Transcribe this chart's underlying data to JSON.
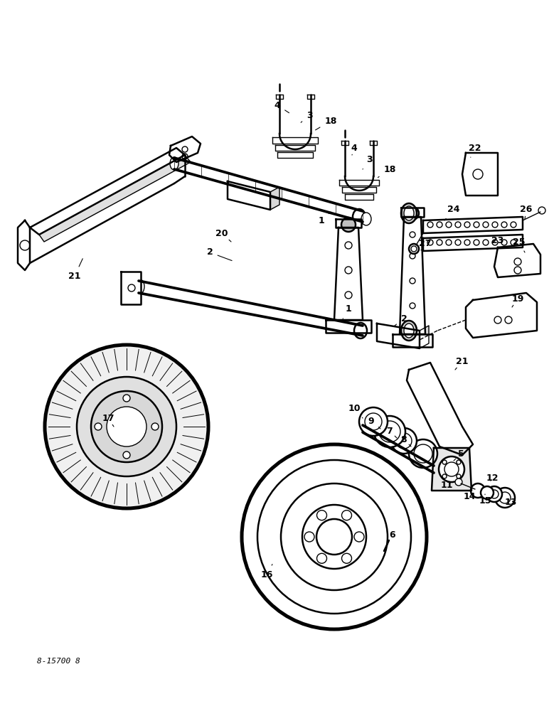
{
  "bg_color": "#ffffff",
  "fig_width": 7.72,
  "fig_height": 10.0,
  "dpi": 100,
  "bottom_text": "8-15700 8",
  "line_color": "#000000"
}
